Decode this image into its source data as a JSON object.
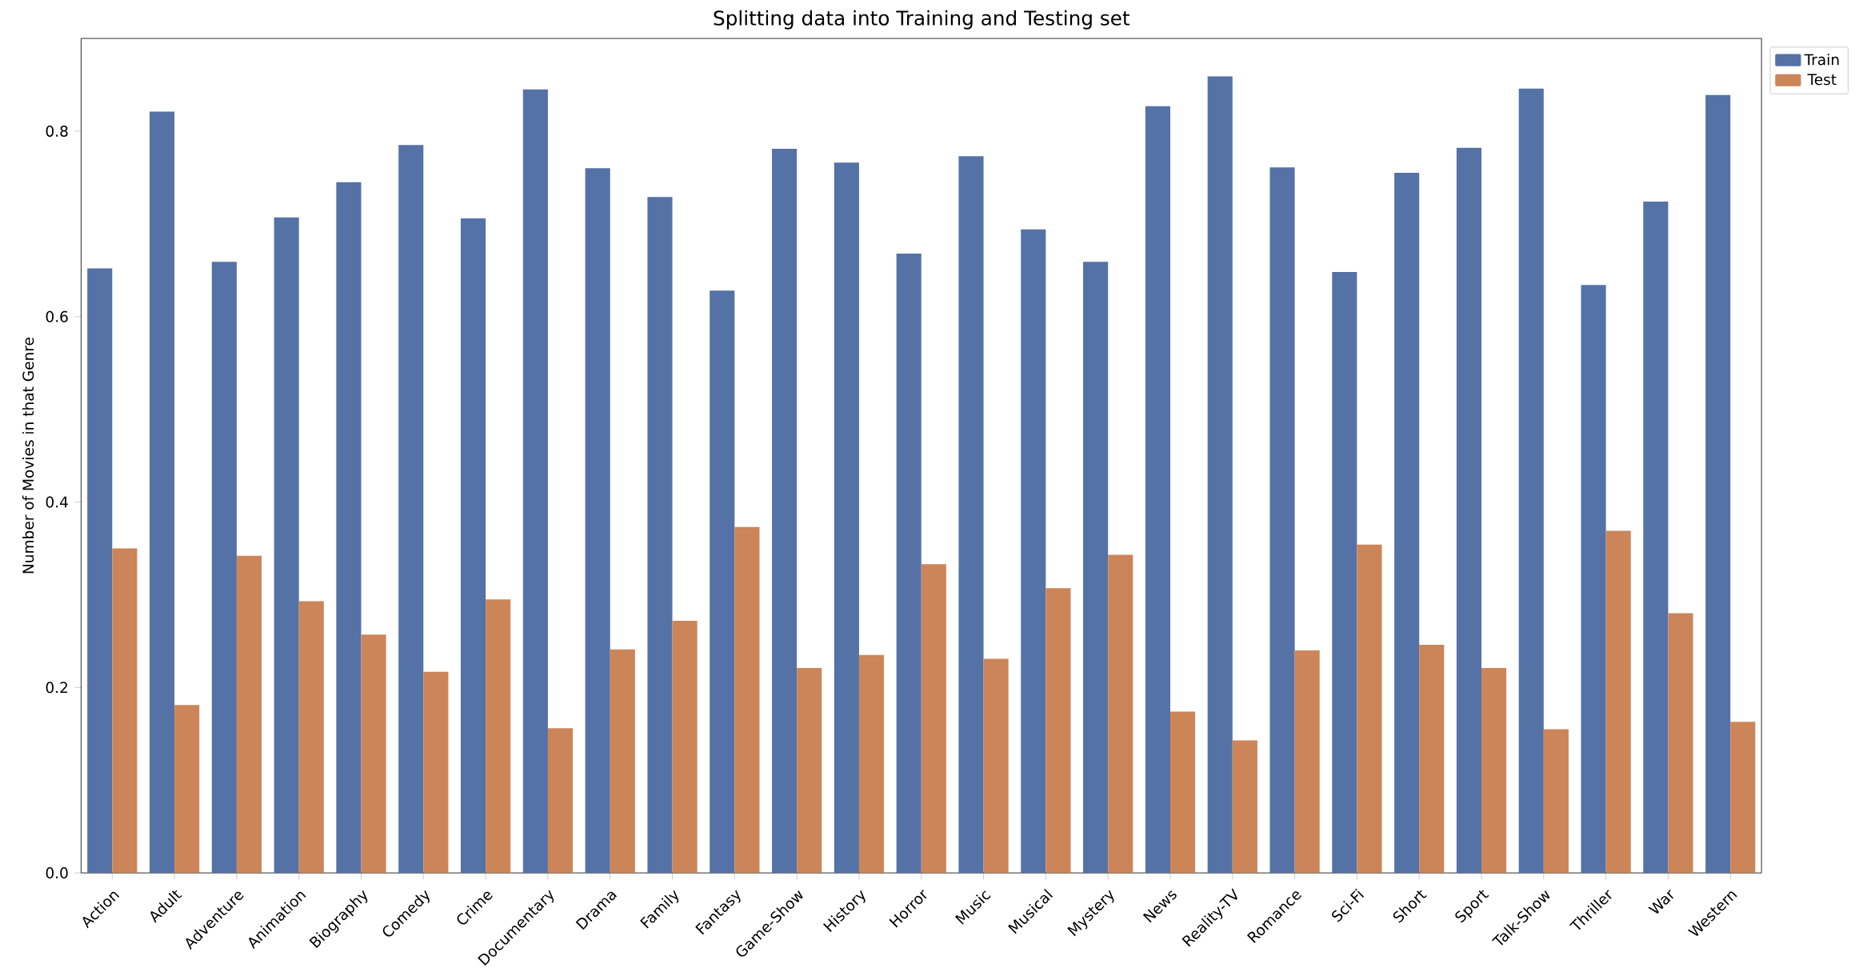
{
  "chart_data": {
    "type": "bar",
    "title": "Splitting data into Training and Testing set",
    "ylabel": "Number of Movies in that Genre",
    "categories": [
      "Action",
      "Adult",
      "Adventure",
      "Animation",
      "Biography",
      "Comedy",
      "Crime",
      "Documentary",
      "Drama",
      "Family",
      "Fantasy",
      "Game-Show",
      "History",
      "Horror",
      "Music",
      "Musical",
      "Mystery",
      "News",
      "Reality-TV",
      "Romance",
      "Sci-Fi",
      "Short",
      "Sport",
      "Talk-Show",
      "Thriller",
      "War",
      "Western"
    ],
    "series": [
      {
        "name": "Train",
        "color": "#5572a6",
        "values": [
          0.652,
          0.821,
          0.659,
          0.707,
          0.745,
          0.785,
          0.706,
          0.845,
          0.76,
          0.729,
          0.628,
          0.781,
          0.766,
          0.668,
          0.773,
          0.694,
          0.659,
          0.827,
          0.859,
          0.761,
          0.648,
          0.755,
          0.782,
          0.846,
          0.634,
          0.724,
          0.839
        ]
      },
      {
        "name": "Test",
        "color": "#cc8558",
        "values": [
          0.35,
          0.181,
          0.342,
          0.293,
          0.257,
          0.217,
          0.295,
          0.156,
          0.241,
          0.272,
          0.373,
          0.221,
          0.235,
          0.333,
          0.231,
          0.307,
          0.343,
          0.174,
          0.143,
          0.24,
          0.354,
          0.246,
          0.221,
          0.155,
          0.369,
          0.28,
          0.163
        ]
      }
    ],
    "ylim": [
      0,
      0.9
    ],
    "yticks": [
      {
        "value": 0,
        "label": "0.0"
      },
      {
        "value": 0.2,
        "label": "0.2"
      },
      {
        "value": 0.4,
        "label": "0.4"
      },
      {
        "value": 0.6,
        "label": "0.6"
      },
      {
        "value": 0.8,
        "label": "0.8"
      }
    ],
    "legend": "top right",
    "grid": false
  }
}
